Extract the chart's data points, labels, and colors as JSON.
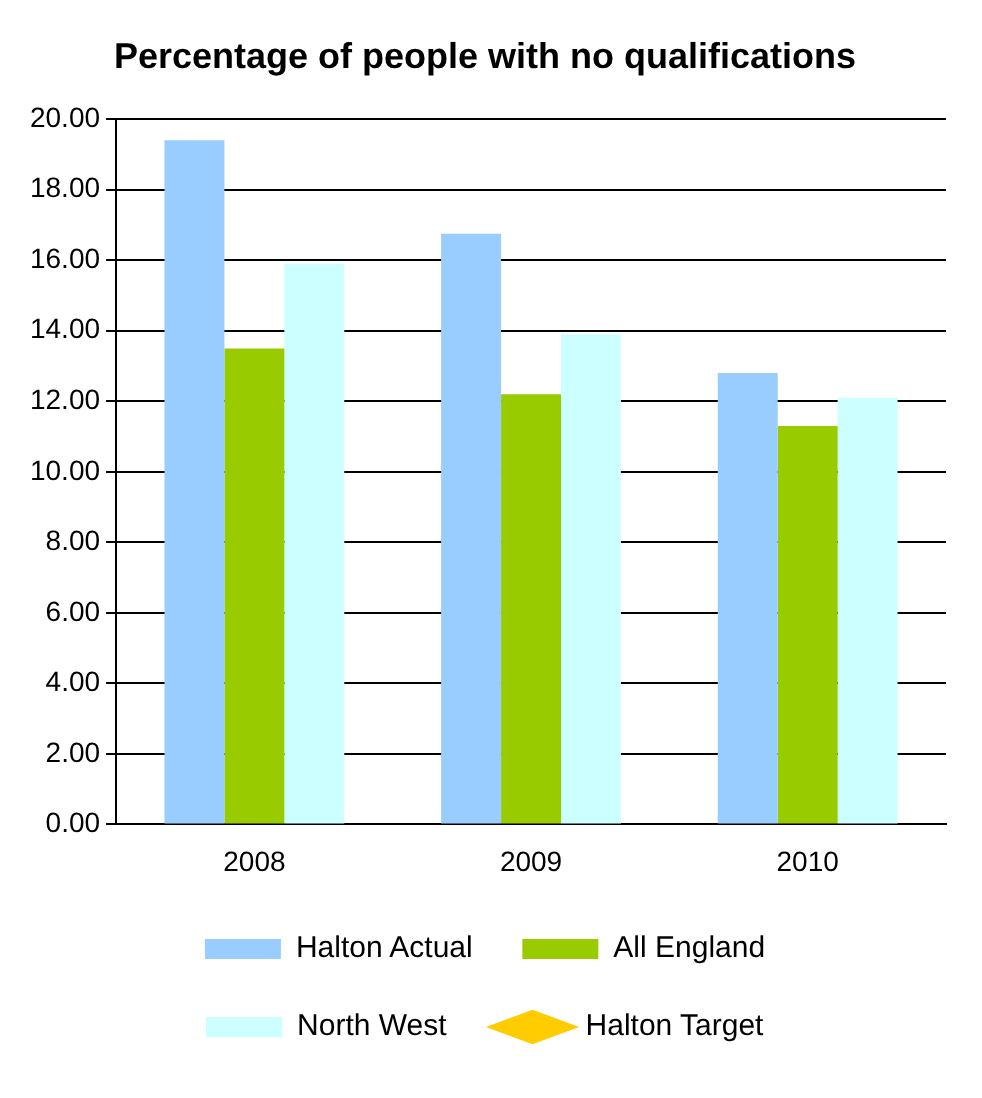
{
  "chart_data": {
    "type": "bar",
    "title": "Percentage of people with no qualifications",
    "categories": [
      "2008",
      "2009",
      "2010"
    ],
    "series": [
      {
        "name": "Halton Actual",
        "color": "#99ccff",
        "values": [
          19.4,
          16.75,
          12.8
        ]
      },
      {
        "name": "All England",
        "color": "#99cc00",
        "values": [
          13.5,
          12.2,
          11.3
        ]
      },
      {
        "name": "North West",
        "color": "#ccffff",
        "values": [
          15.9,
          13.9,
          12.1
        ]
      },
      {
        "name": "Halton Target",
        "type": "line",
        "color": "#ffcc00",
        "marker": "diamond",
        "values": [
          null,
          null,
          null
        ]
      }
    ],
    "ylim": [
      0,
      20
    ],
    "yticks": [
      {
        "value": 0,
        "label": "0.00"
      },
      {
        "value": 2,
        "label": "2.00"
      },
      {
        "value": 4,
        "label": "4.00"
      },
      {
        "value": 6,
        "label": "6.00"
      },
      {
        "value": 8,
        "label": "8.00"
      },
      {
        "value": 10,
        "label": "10.00"
      },
      {
        "value": 12,
        "label": "12.00"
      },
      {
        "value": 14,
        "label": "14.00"
      },
      {
        "value": 16,
        "label": "16.00"
      },
      {
        "value": 18,
        "label": "18.00"
      },
      {
        "value": 20,
        "label": "20.00"
      }
    ],
    "grid": "y",
    "legend": "bottom"
  }
}
